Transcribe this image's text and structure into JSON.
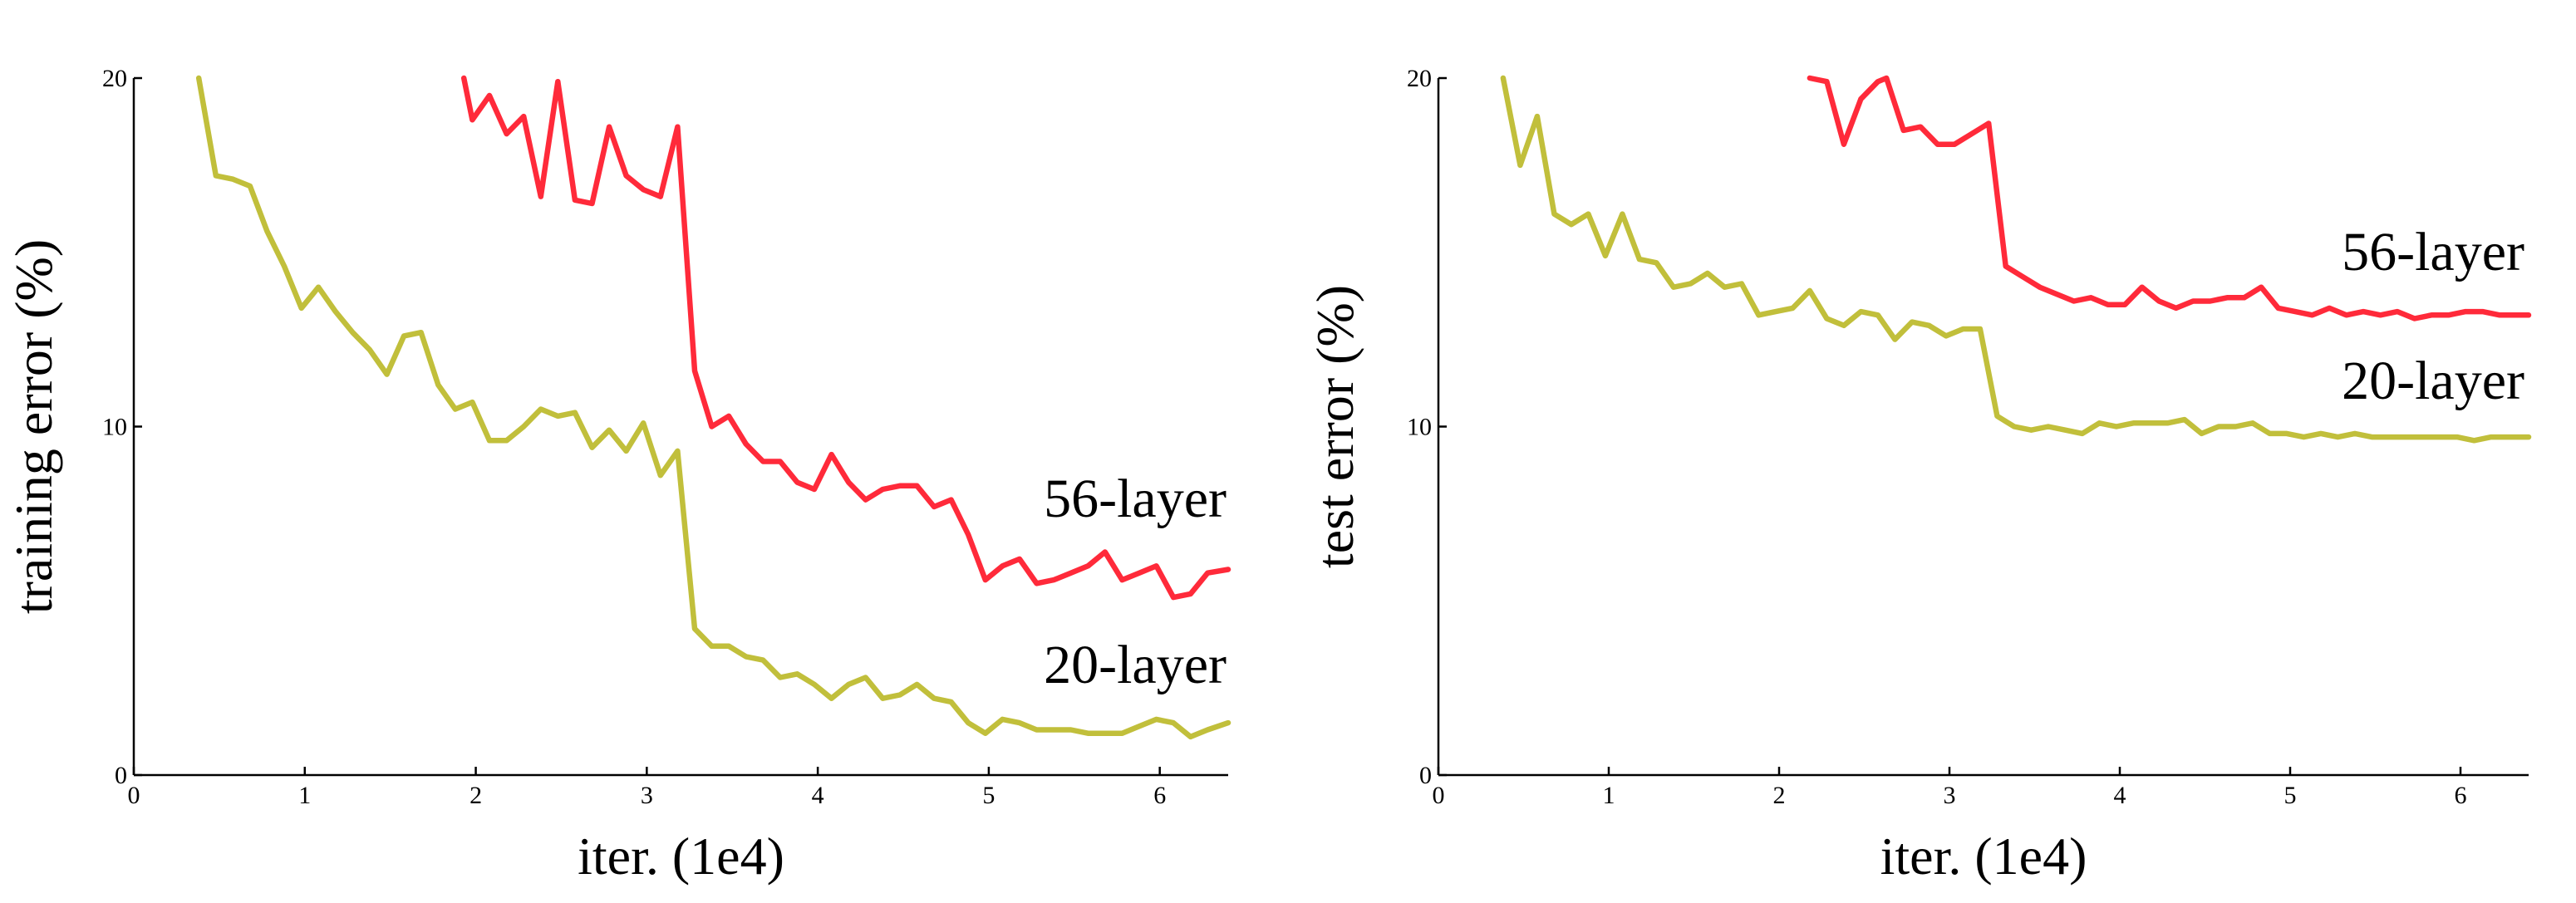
{
  "chart_data": [
    {
      "type": "line",
      "title": "",
      "xlabel": "iter. (1e4)",
      "ylabel": "training error (%)",
      "xlim": [
        0,
        6.4
      ],
      "ylim": [
        0,
        20
      ],
      "xticks": [
        "0",
        "1",
        "2",
        "3",
        "4",
        "5",
        "6"
      ],
      "yticks": [
        "0",
        "10",
        "20"
      ],
      "grid": false,
      "series": [
        {
          "name": "56-layer",
          "color": "#ff2a3a",
          "x": [
            1.93,
            1.98,
            2.08,
            2.18,
            2.28,
            2.38,
            2.48,
            2.58,
            2.68,
            2.78,
            2.88,
            2.98,
            3.08,
            3.18,
            3.28,
            3.38,
            3.48,
            3.58,
            3.68,
            3.78,
            3.88,
            3.98,
            4.08,
            4.18,
            4.28,
            4.38,
            4.48,
            4.58,
            4.68,
            4.78,
            4.88,
            4.98,
            5.08,
            5.18,
            5.28,
            5.38,
            5.48,
            5.58,
            5.68,
            5.78,
            5.88,
            5.98,
            6.08,
            6.18,
            6.28,
            6.4
          ],
          "y": [
            20.0,
            18.8,
            19.5,
            18.4,
            18.9,
            16.6,
            19.9,
            16.5,
            16.4,
            18.6,
            17.2,
            16.8,
            16.6,
            18.6,
            11.6,
            10.0,
            10.3,
            9.5,
            9.0,
            9.0,
            8.4,
            8.2,
            9.2,
            8.4,
            7.9,
            8.2,
            8.3,
            8.3,
            7.7,
            7.9,
            6.9,
            5.6,
            6.0,
            6.2,
            5.5,
            5.6,
            5.8,
            6.0,
            6.4,
            5.6,
            5.8,
            6.0,
            5.1,
            5.2,
            5.8,
            5.9
          ]
        },
        {
          "name": "20-layer",
          "color": "#c1bf3b",
          "x": [
            0.38,
            0.48,
            0.58,
            0.68,
            0.78,
            0.88,
            0.98,
            1.08,
            1.18,
            1.28,
            1.38,
            1.48,
            1.58,
            1.68,
            1.78,
            1.88,
            1.98,
            2.08,
            2.18,
            2.28,
            2.38,
            2.48,
            2.58,
            2.68,
            2.78,
            2.88,
            2.98,
            3.08,
            3.18,
            3.28,
            3.38,
            3.48,
            3.58,
            3.68,
            3.78,
            3.88,
            3.98,
            4.08,
            4.18,
            4.28,
            4.38,
            4.48,
            4.58,
            4.68,
            4.78,
            4.88,
            4.98,
            5.08,
            5.18,
            5.28,
            5.38,
            5.48,
            5.58,
            5.68,
            5.78,
            5.88,
            5.98,
            6.08,
            6.18,
            6.28,
            6.4
          ],
          "y": [
            20.0,
            17.2,
            17.1,
            16.9,
            15.6,
            14.6,
            13.4,
            14.0,
            13.3,
            12.7,
            12.2,
            11.5,
            12.6,
            12.7,
            11.2,
            10.5,
            10.7,
            9.6,
            9.6,
            10.0,
            10.5,
            10.3,
            10.4,
            9.4,
            9.9,
            9.3,
            10.1,
            8.6,
            9.3,
            4.2,
            3.7,
            3.7,
            3.4,
            3.3,
            2.8,
            2.9,
            2.6,
            2.2,
            2.6,
            2.8,
            2.2,
            2.3,
            2.6,
            2.2,
            2.1,
            1.5,
            1.2,
            1.6,
            1.5,
            1.3,
            1.3,
            1.3,
            1.2,
            1.2,
            1.2,
            1.4,
            1.6,
            1.5,
            1.1,
            1.3,
            1.5
          ]
        }
      ]
    },
    {
      "type": "line",
      "title": "",
      "xlabel": "iter. (1e4)",
      "ylabel": "test error (%)",
      "xlim": [
        0,
        6.4
      ],
      "ylim": [
        0,
        20
      ],
      "xticks": [
        "0",
        "1",
        "2",
        "3",
        "4",
        "5",
        "6"
      ],
      "yticks": [
        "0",
        "10",
        "20"
      ],
      "grid": false,
      "series": [
        {
          "name": "56-layer",
          "color": "#ff2a3a",
          "x": [
            2.18,
            2.28,
            2.38,
            2.48,
            2.58,
            2.63,
            2.73,
            2.83,
            2.93,
            3.03,
            3.13,
            3.23,
            3.33,
            3.43,
            3.53,
            3.63,
            3.73,
            3.83,
            3.93,
            4.03,
            4.13,
            4.23,
            4.33,
            4.43,
            4.53,
            4.63,
            4.73,
            4.83,
            4.93,
            5.03,
            5.13,
            5.23,
            5.33,
            5.43,
            5.53,
            5.63,
            5.73,
            5.83,
            5.93,
            6.03,
            6.13,
            6.23,
            6.33,
            6.4
          ],
          "y": [
            20.0,
            19.9,
            18.1,
            19.4,
            19.9,
            20.0,
            18.5,
            18.6,
            18.1,
            18.1,
            18.4,
            18.7,
            14.6,
            14.3,
            14.0,
            13.8,
            13.6,
            13.7,
            13.5,
            13.5,
            14.0,
            13.6,
            13.4,
            13.6,
            13.6,
            13.7,
            13.7,
            14.0,
            13.4,
            13.3,
            13.2,
            13.4,
            13.2,
            13.3,
            13.2,
            13.3,
            13.1,
            13.2,
            13.2,
            13.3,
            13.3,
            13.2,
            13.2,
            13.2
          ]
        },
        {
          "name": "20-layer",
          "color": "#c1bf3b",
          "x": [
            0.38,
            0.48,
            0.58,
            0.68,
            0.78,
            0.88,
            0.98,
            1.08,
            1.18,
            1.28,
            1.38,
            1.48,
            1.58,
            1.68,
            1.78,
            1.88,
            1.98,
            2.08,
            2.18,
            2.28,
            2.38,
            2.48,
            2.58,
            2.68,
            2.78,
            2.88,
            2.98,
            3.08,
            3.18,
            3.28,
            3.38,
            3.48,
            3.58,
            3.68,
            3.78,
            3.88,
            3.98,
            4.08,
            4.18,
            4.28,
            4.38,
            4.48,
            4.58,
            4.68,
            4.78,
            4.88,
            4.98,
            5.08,
            5.18,
            5.28,
            5.38,
            5.48,
            5.58,
            5.68,
            5.78,
            5.88,
            5.98,
            6.08,
            6.18,
            6.28,
            6.4
          ],
          "y": [
            20.0,
            17.5,
            18.9,
            16.1,
            15.8,
            16.1,
            14.9,
            16.1,
            14.8,
            14.7,
            14.0,
            14.1,
            14.4,
            14.0,
            14.1,
            13.2,
            13.3,
            13.4,
            13.9,
            13.1,
            12.9,
            13.3,
            13.2,
            12.5,
            13.0,
            12.9,
            12.6,
            12.8,
            12.8,
            10.3,
            10.0,
            9.9,
            10.0,
            9.9,
            9.8,
            10.1,
            10.0,
            10.1,
            10.1,
            10.1,
            10.2,
            9.8,
            10.0,
            10.0,
            10.1,
            9.8,
            9.8,
            9.7,
            9.8,
            9.7,
            9.8,
            9.7,
            9.7,
            9.7,
            9.7,
            9.7,
            9.7,
            9.6,
            9.7,
            9.7,
            9.7
          ]
        }
      ]
    }
  ]
}
